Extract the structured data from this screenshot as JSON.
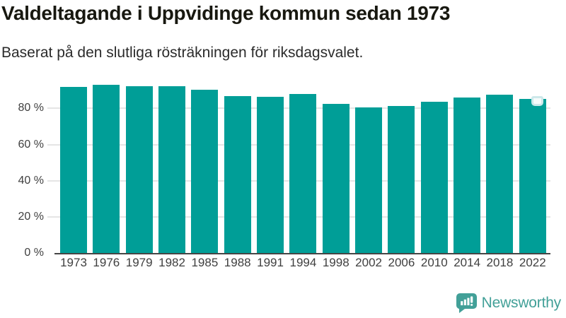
{
  "header": {
    "title": "Valdeltagande i Uppvidinge kommun sedan 1973",
    "subtitle": "Baserat på den slutliga rösträkningen för riksdagsvalet."
  },
  "chart_data": {
    "type": "bar",
    "title": "Valdeltagande i Uppvidinge kommun sedan 1973",
    "subtitle": "Baserat på den slutliga rösträkningen för riksdagsvalet.",
    "categories": [
      "1973",
      "1976",
      "1979",
      "1982",
      "1985",
      "1988",
      "1991",
      "1994",
      "1998",
      "2002",
      "2006",
      "2010",
      "2014",
      "2018",
      "2022"
    ],
    "values": [
      92.0,
      92.9,
      92.1,
      92.4,
      90.3,
      86.9,
      86.6,
      87.8,
      82.6,
      80.4,
      81.3,
      83.5,
      86.1,
      87.4,
      85.4
    ],
    "unit": "%",
    "xlabel": "",
    "ylabel": "",
    "ylim": [
      0,
      95
    ],
    "yticks": [
      0,
      20,
      40,
      60,
      80
    ],
    "ytick_labels": [
      "0 %",
      "20 %",
      "40 %",
      "60 %",
      "80 %"
    ],
    "grid": "horizontal-behind-bars",
    "legend": "none",
    "highlight_category": "2022"
  },
  "colors": {
    "bar": "#009e97",
    "grid": "#e5e5e5",
    "axis_line": "#454545",
    "tick_label": "#3f3f3f",
    "title": "#181810",
    "subtitle": "#2b2b2b",
    "brand": "#42a098",
    "marker_fill": "#f6fbfb",
    "marker_border": "#cde8ea"
  },
  "footer": {
    "brand": "Newsworthy",
    "logo_icon": "newsworthy-speech-bubble-bar-chart-icon"
  }
}
